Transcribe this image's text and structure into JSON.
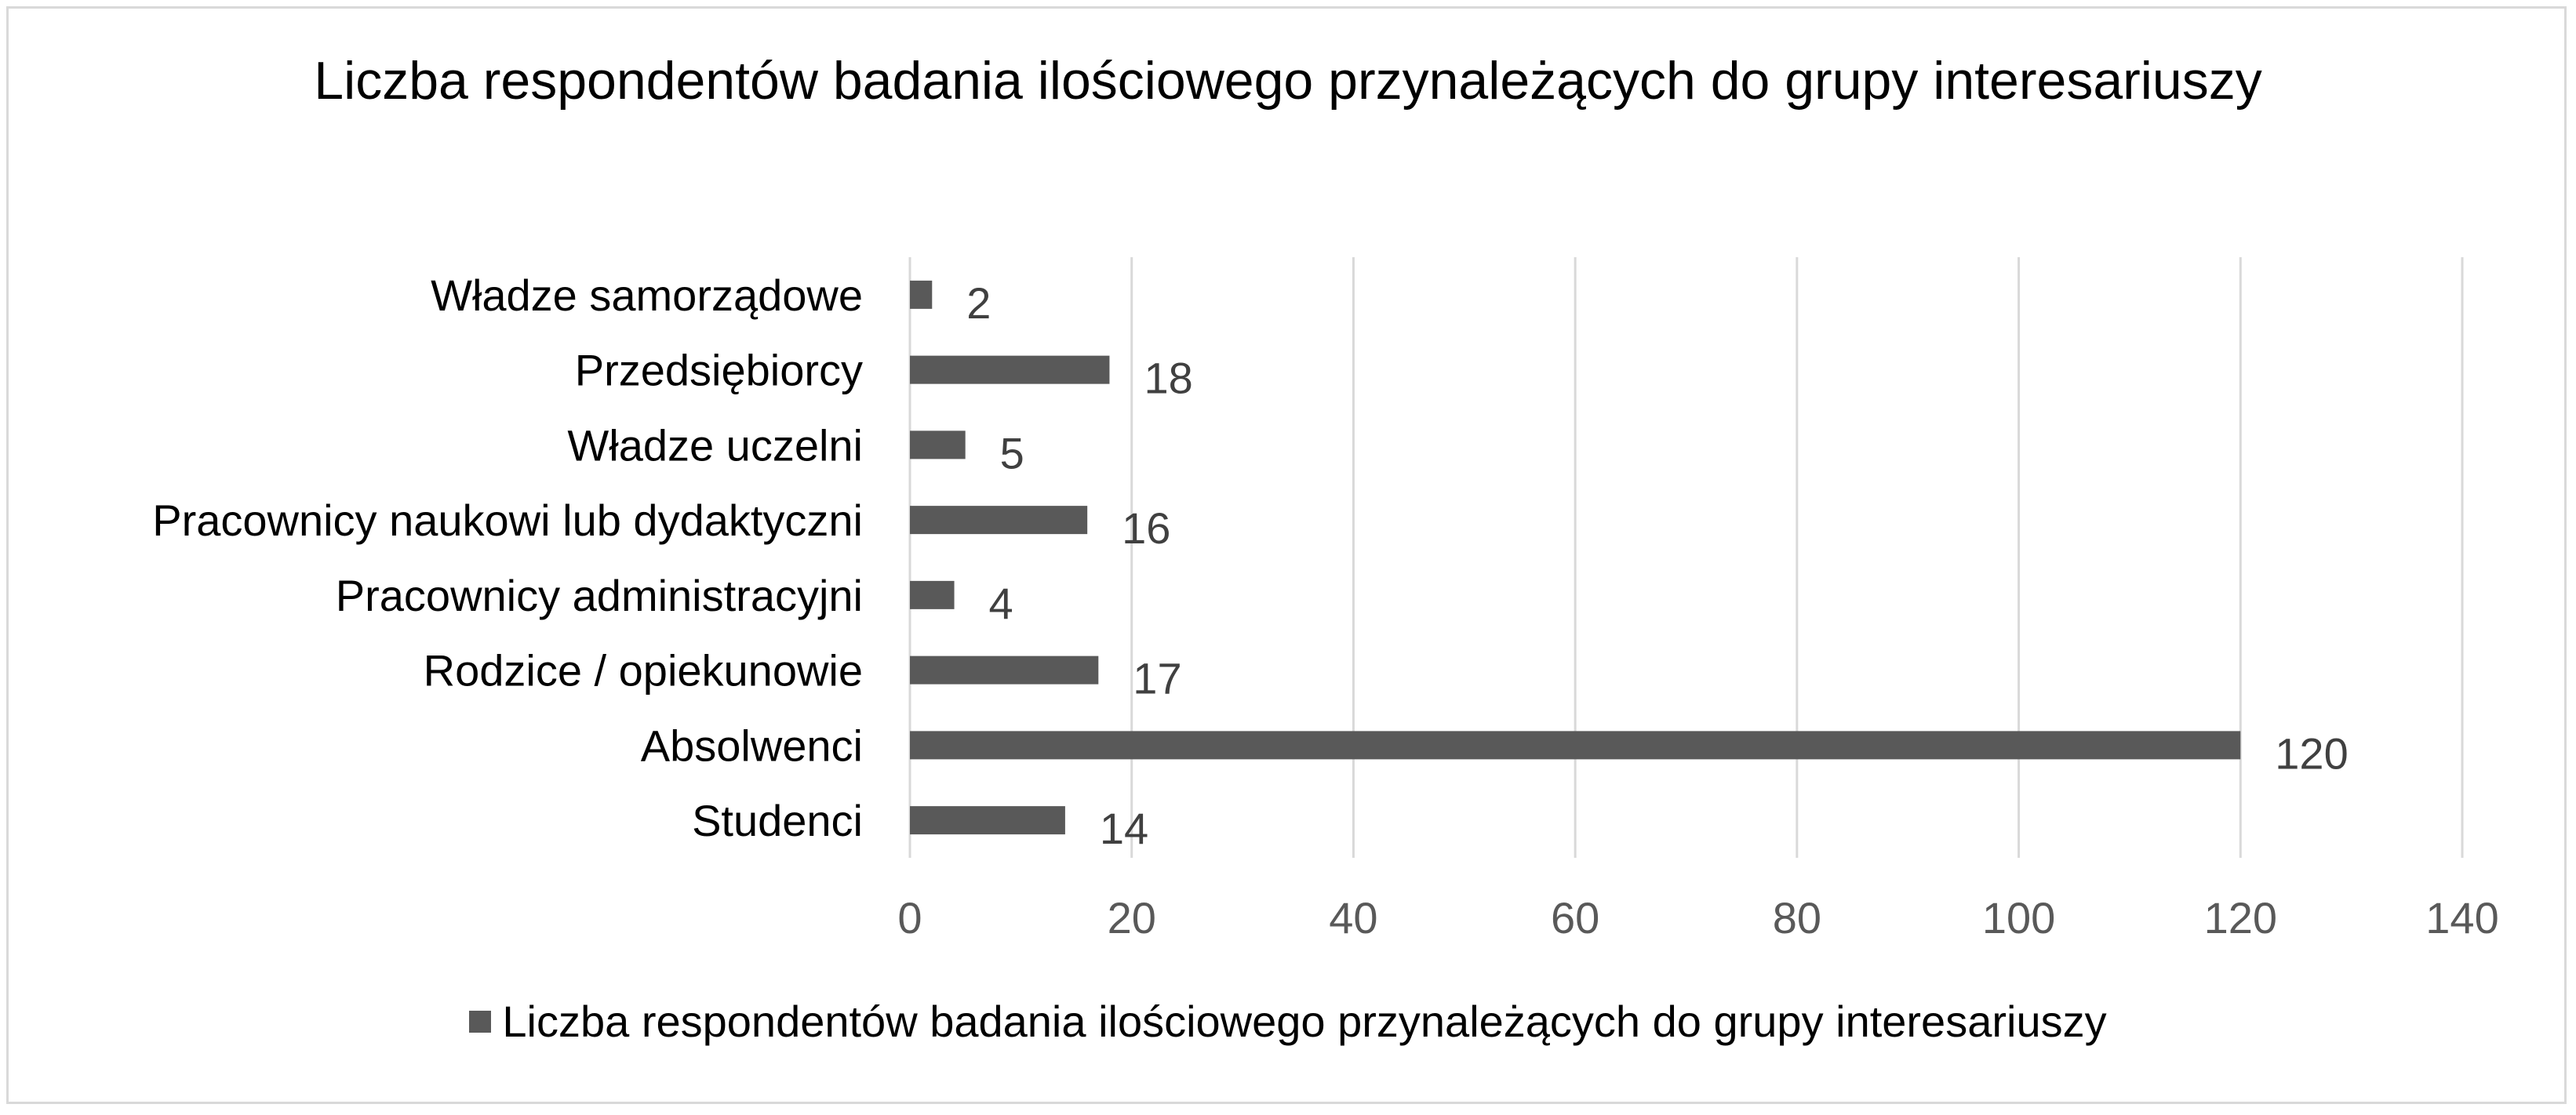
{
  "chart_data": {
    "type": "bar",
    "orientation": "horizontal",
    "title": "Liczba respondentów badania ilościowego przynależących do grupy interesariuszy",
    "categories": [
      "Władze samorządowe",
      "Przedsiębiorcy",
      "Władze uczelni",
      "Pracownicy naukowi lub dydaktyczni",
      "Pracownicy administracyjni",
      "Rodzice / opiekunowie",
      "Absolwenci",
      "Studenci"
    ],
    "series": [
      {
        "name": "Liczba respondentów badania ilościowego przynależących do grupy interesariuszy",
        "values": [
          2,
          18,
          5,
          16,
          4,
          17,
          120,
          14
        ],
        "color": "#595959"
      }
    ],
    "xlim": [
      0,
      140
    ],
    "xticks": [
      0,
      20,
      40,
      60,
      80,
      100,
      120,
      140
    ],
    "grid": true,
    "data_labels": true,
    "legend_position": "bottom"
  }
}
